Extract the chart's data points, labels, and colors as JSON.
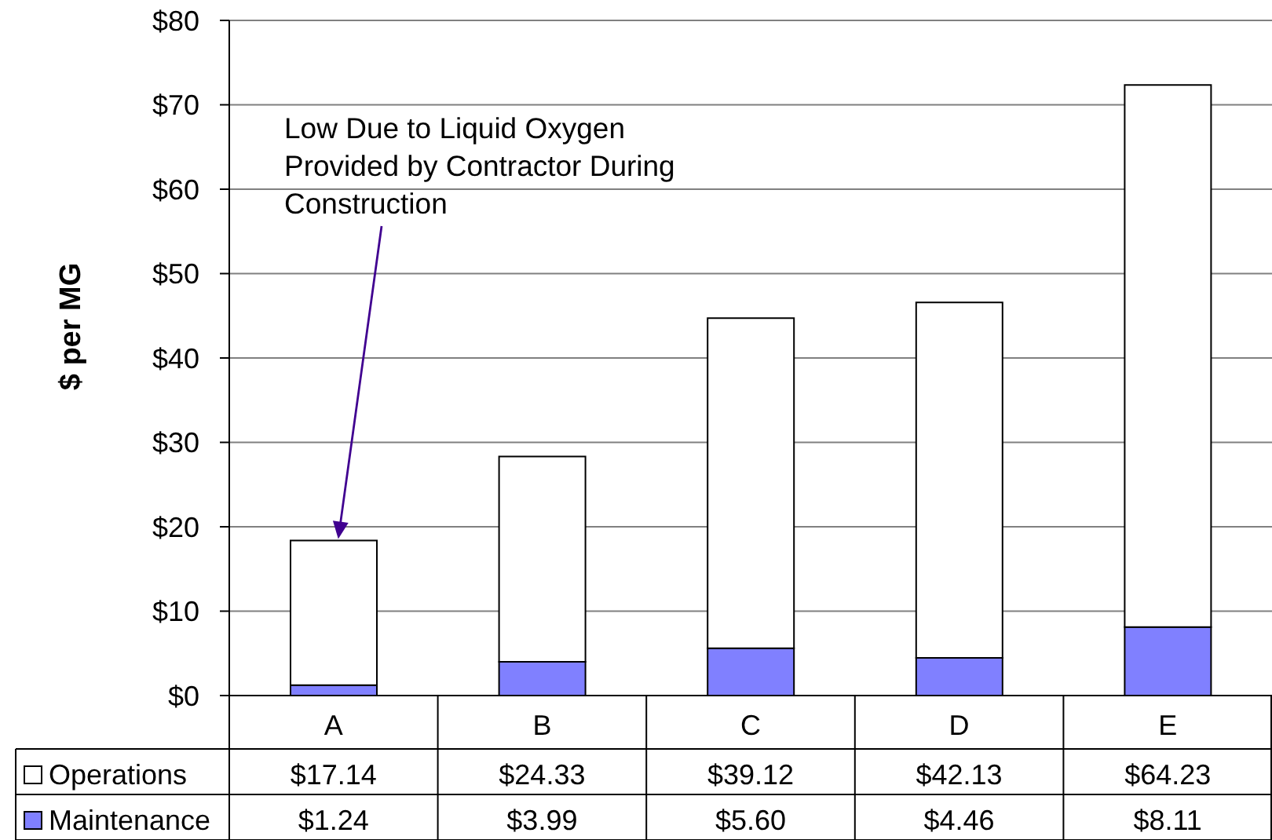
{
  "chart_data": {
    "type": "bar",
    "stacked": true,
    "categories": [
      "A",
      "B",
      "C",
      "D",
      "E"
    ],
    "series": [
      {
        "name": "Maintenance",
        "color": "#8080ff",
        "values": [
          1.24,
          3.99,
          5.6,
          4.46,
          8.11
        ],
        "value_labels": [
          "$1.24",
          "$3.99",
          "$5.60",
          "$4.46",
          "$8.11"
        ]
      },
      {
        "name": "Operations",
        "color": "#ffffff",
        "values": [
          17.14,
          24.33,
          39.12,
          42.13,
          64.23
        ],
        "value_labels": [
          "$17.14",
          "$24.33",
          "$39.12",
          "$42.13",
          "$64.23"
        ]
      }
    ],
    "ylabel": "$ per MG",
    "ylim": [
      0,
      80
    ],
    "yticks": [
      {
        "value": 0,
        "label": "$0"
      },
      {
        "value": 10,
        "label": "$10"
      },
      {
        "value": 20,
        "label": "$20"
      },
      {
        "value": 30,
        "label": "$30"
      },
      {
        "value": 40,
        "label": "$40"
      },
      {
        "value": 50,
        "label": "$50"
      },
      {
        "value": 60,
        "label": "$60"
      },
      {
        "value": 70,
        "label": "$70"
      },
      {
        "value": 80,
        "label": "$80"
      }
    ],
    "grid": "y",
    "legend": "bottom",
    "annotations": [
      "Low Due to Liquid Oxygen Provided by Contractor During Construction"
    ]
  }
}
